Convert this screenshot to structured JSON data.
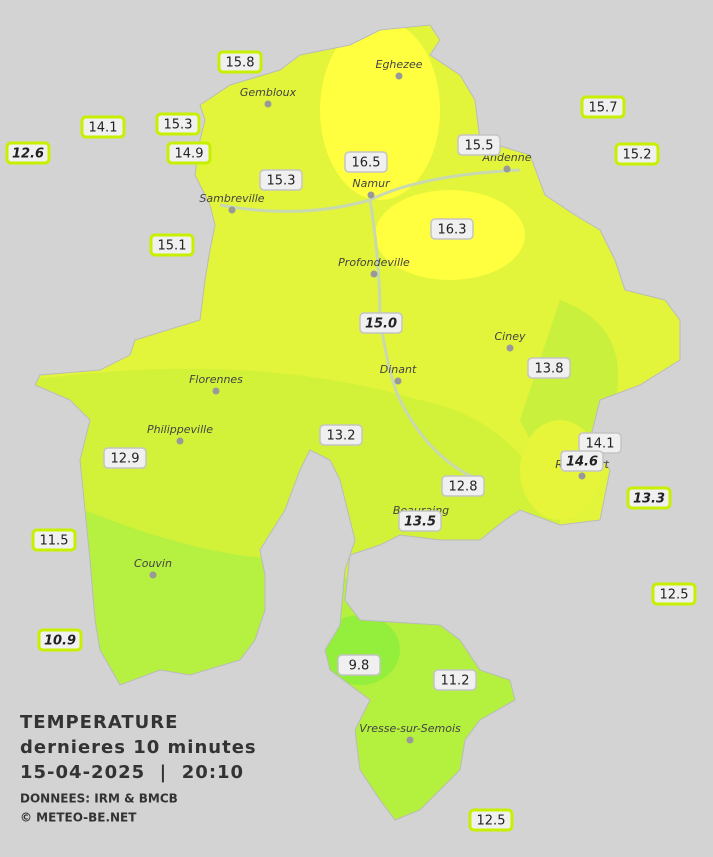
{
  "title": {
    "line1": "TEMPERATURE",
    "line2": "dernieres 10 minutes",
    "line3": "15-04-2025  |  20:10",
    "source": "DONNEES: IRM & BMCB",
    "copyright": "© METEO-BE.NET"
  },
  "towns": [
    {
      "name": "Eghezee"
    },
    {
      "name": "Gembloux"
    },
    {
      "name": "Andenne"
    },
    {
      "name": "Namur"
    },
    {
      "name": "Sambreville"
    },
    {
      "name": "Profondeville"
    },
    {
      "name": "Ciney"
    },
    {
      "name": "Dinant"
    },
    {
      "name": "Florennes"
    },
    {
      "name": "Philippeville"
    },
    {
      "name": "Rochefort"
    },
    {
      "name": "Beauraing"
    },
    {
      "name": "Couvin"
    },
    {
      "name": "Vresse-sur-Semois"
    }
  ],
  "stations": [
    {
      "value": "15.8"
    },
    {
      "value": "14.1"
    },
    {
      "value": "15.3"
    },
    {
      "value": "12.6"
    },
    {
      "value": "14.9"
    },
    {
      "value": "16.5"
    },
    {
      "value": "15.3"
    },
    {
      "value": "15.5"
    },
    {
      "value": "15.7"
    },
    {
      "value": "15.2"
    },
    {
      "value": "16.3"
    },
    {
      "value": "15.1"
    },
    {
      "value": "15.0"
    },
    {
      "value": "13.8"
    },
    {
      "value": "13.2"
    },
    {
      "value": "14.1"
    },
    {
      "value": "14.6"
    },
    {
      "value": "12.9"
    },
    {
      "value": "12.8"
    },
    {
      "value": "13.3"
    },
    {
      "value": "13.5"
    },
    {
      "value": "11.5"
    },
    {
      "value": "12.5"
    },
    {
      "value": "10.9"
    },
    {
      "value": "9.8"
    },
    {
      "value": "11.2"
    },
    {
      "value": "12.5"
    }
  ]
}
